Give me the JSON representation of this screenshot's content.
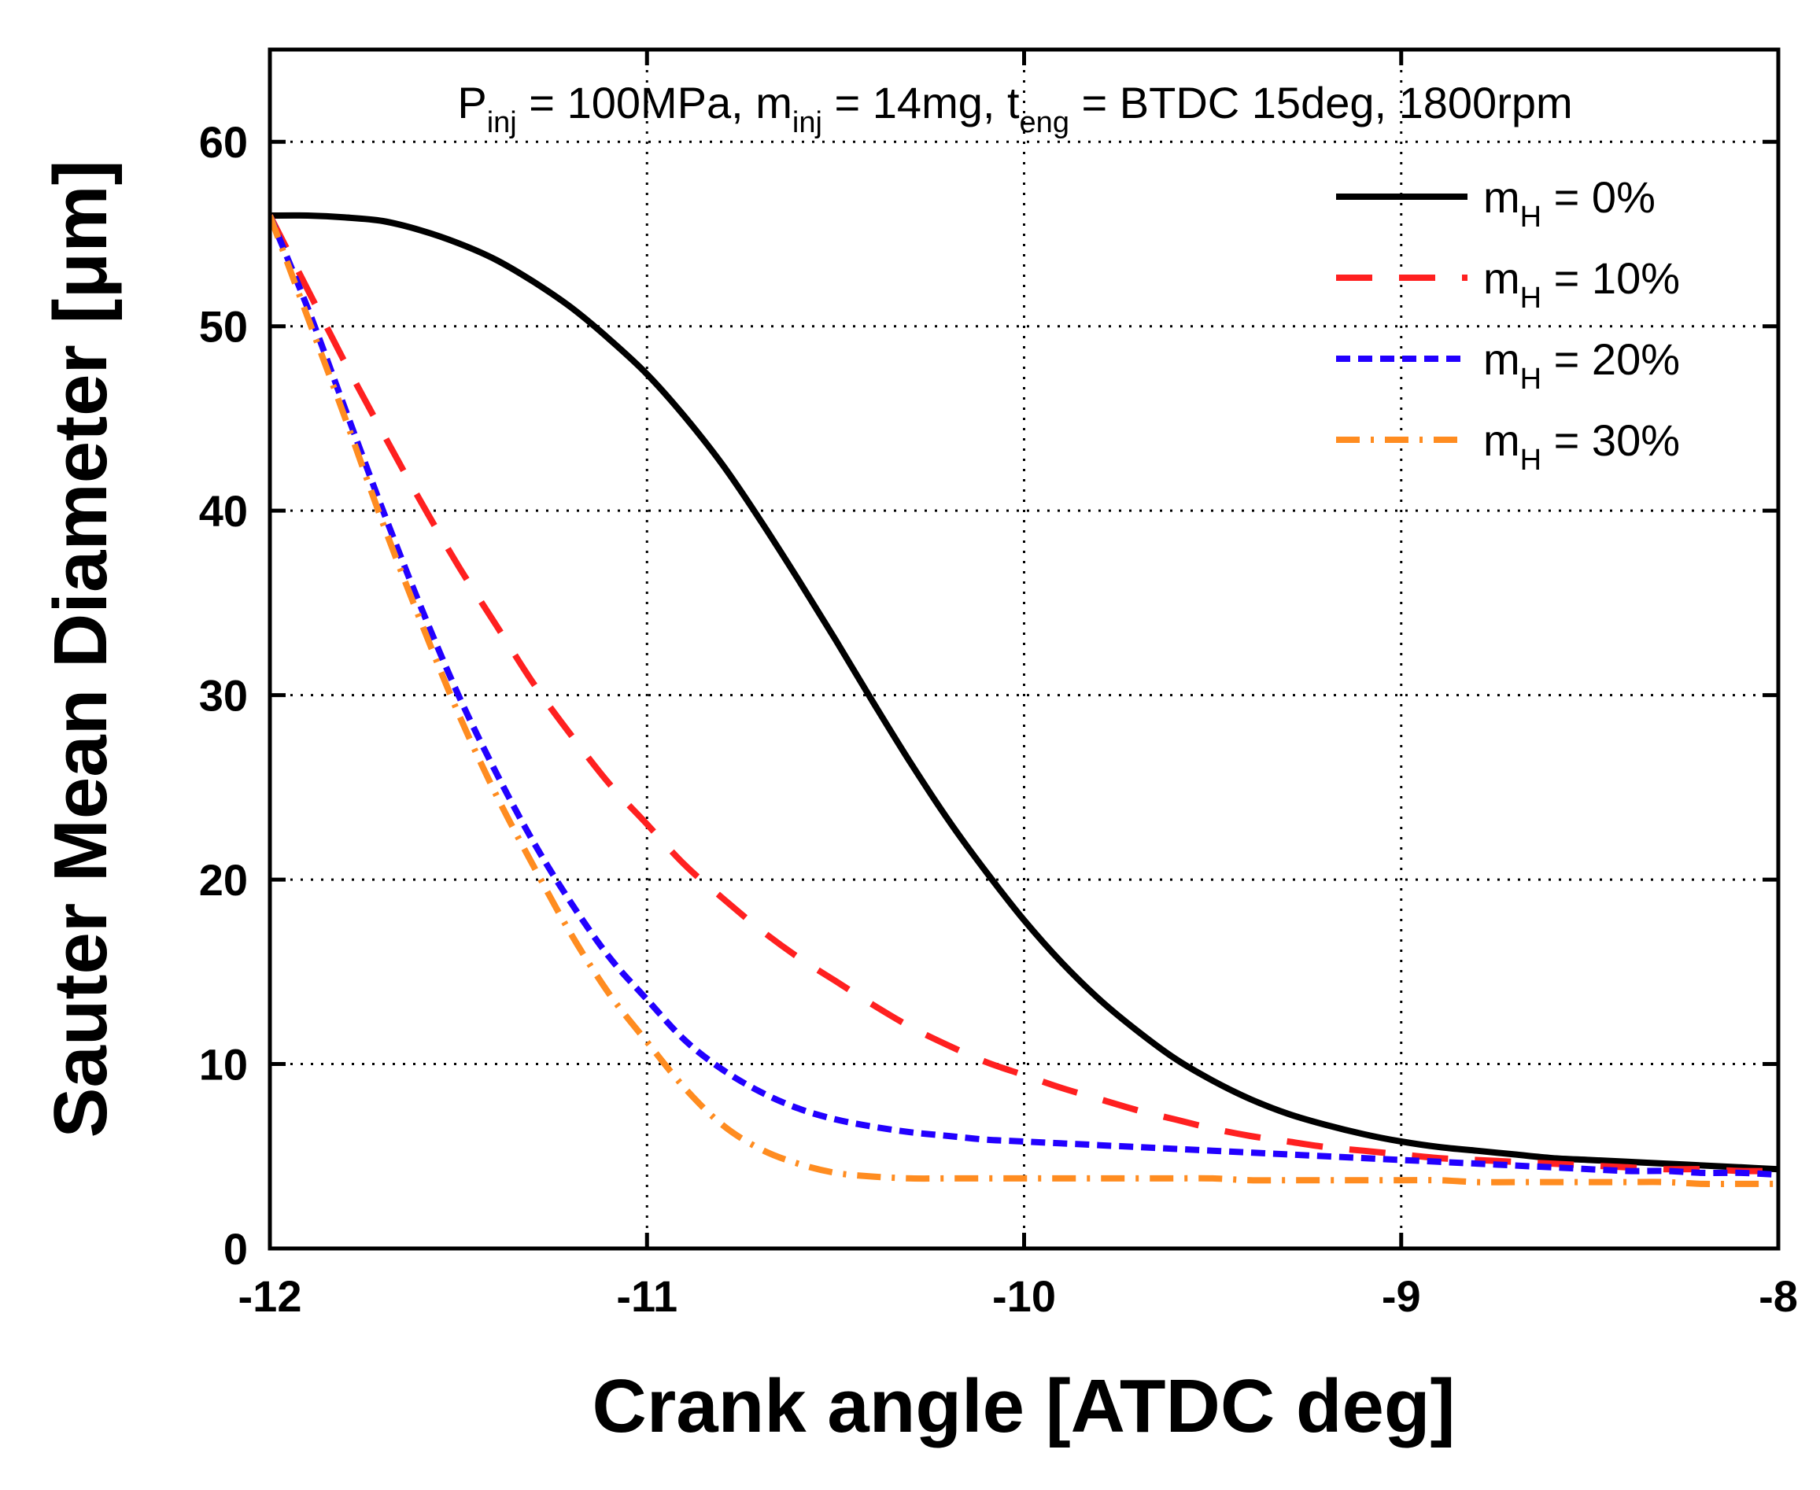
{
  "chart_data": {
    "type": "line",
    "title": "",
    "xlabel": "Crank angle [ATDC deg]",
    "ylabel": "Sauter Mean Diameter [μm]",
    "xlim": [
      -12,
      -8
    ],
    "ylim": [
      0,
      65
    ],
    "xticks": [
      -12,
      -11,
      -10,
      -9,
      -8
    ],
    "yticks": [
      0,
      10,
      20,
      30,
      40,
      50,
      60
    ],
    "xtick_labels": [
      "-12",
      "-11",
      "-10",
      "-9",
      "-8"
    ],
    "ytick_labels": [
      "0",
      "10",
      "20",
      "30",
      "40",
      "50",
      "60"
    ],
    "grid": true,
    "legend_position": "top-right",
    "annotation": {
      "p": "P",
      "p_sub": "inj",
      "p_rest": " = 100MPa, ",
      "m": "m",
      "m_sub": "inj",
      "m_rest": " = 14mg, ",
      "t": "t",
      "t_sub": "eng",
      "t_rest": " = BTDC 15deg, 1800rpm"
    },
    "series": [
      {
        "name": "m_H = 0%",
        "legend_main": "m",
        "legend_sub": "H",
        "legend_rest": " = 0%",
        "color": "#000000",
        "dash": "solid",
        "x": [
          -12.0,
          -11.9,
          -11.8,
          -11.7,
          -11.6,
          -11.5,
          -11.4,
          -11.3,
          -11.2,
          -11.1,
          -11.0,
          -10.9,
          -10.8,
          -10.7,
          -10.6,
          -10.5,
          -10.4,
          -10.3,
          -10.2,
          -10.1,
          -10.0,
          -9.9,
          -9.8,
          -9.7,
          -9.6,
          -9.5,
          -9.4,
          -9.3,
          -9.2,
          -9.1,
          -9.0,
          -8.9,
          -8.8,
          -8.7,
          -8.6,
          -8.5,
          -8.4,
          -8.3,
          -8.2,
          -8.1,
          -8.0
        ],
        "y": [
          56.0,
          56.0,
          55.9,
          55.7,
          55.2,
          54.5,
          53.6,
          52.4,
          51.0,
          49.3,
          47.4,
          45.1,
          42.5,
          39.5,
          36.3,
          33.0,
          29.6,
          26.3,
          23.2,
          20.4,
          17.8,
          15.5,
          13.5,
          11.8,
          10.3,
          9.1,
          8.1,
          7.3,
          6.7,
          6.2,
          5.8,
          5.5,
          5.3,
          5.1,
          4.9,
          4.8,
          4.7,
          4.6,
          4.5,
          4.4,
          4.3
        ]
      },
      {
        "name": "m_H = 10%",
        "legend_main": "m",
        "legend_sub": "H",
        "legend_rest": " = 10%",
        "color": "#ff2020",
        "dash": "long-dash",
        "x": [
          -12.0,
          -11.9,
          -11.8,
          -11.7,
          -11.6,
          -11.5,
          -11.4,
          -11.3,
          -11.2,
          -11.1,
          -11.0,
          -10.9,
          -10.8,
          -10.7,
          -10.6,
          -10.5,
          -10.4,
          -10.3,
          -10.2,
          -10.1,
          -10.0,
          -9.9,
          -9.8,
          -9.7,
          -9.6,
          -9.5,
          -9.4,
          -9.3,
          -9.2,
          -9.1,
          -9.0,
          -8.9,
          -8.8,
          -8.7,
          -8.6,
          -8.5,
          -8.4,
          -8.3,
          -8.2,
          -8.1,
          -8.0
        ],
        "y": [
          56.0,
          52.0,
          48.0,
          44.2,
          40.5,
          37.0,
          33.8,
          30.6,
          27.8,
          25.2,
          23.0,
          20.8,
          19.0,
          17.3,
          15.8,
          14.5,
          13.2,
          12.0,
          11.0,
          10.1,
          9.4,
          8.7,
          8.1,
          7.5,
          7.0,
          6.5,
          6.1,
          5.8,
          5.5,
          5.3,
          5.1,
          4.9,
          4.8,
          4.7,
          4.6,
          4.5,
          4.4,
          4.3,
          4.3,
          4.2,
          4.2
        ]
      },
      {
        "name": "m_H = 20%",
        "legend_main": "m",
        "legend_sub": "H",
        "legend_rest": " = 20%",
        "color": "#2200ff",
        "dash": "short-dash",
        "x": [
          -12.0,
          -11.9,
          -11.8,
          -11.7,
          -11.6,
          -11.5,
          -11.4,
          -11.3,
          -11.2,
          -11.1,
          -11.0,
          -10.9,
          -10.8,
          -10.7,
          -10.6,
          -10.5,
          -10.4,
          -10.3,
          -10.2,
          -10.1,
          -10.0,
          -9.9,
          -9.8,
          -9.7,
          -9.6,
          -9.5,
          -9.4,
          -9.3,
          -9.2,
          -9.1,
          -9.0,
          -8.9,
          -8.8,
          -8.7,
          -8.6,
          -8.5,
          -8.4,
          -8.3,
          -8.2,
          -8.1,
          -8.0
        ],
        "y": [
          56.0,
          51.0,
          45.5,
          40.0,
          34.8,
          30.0,
          25.8,
          22.0,
          18.7,
          15.8,
          13.5,
          11.3,
          9.7,
          8.5,
          7.6,
          7.0,
          6.6,
          6.3,
          6.1,
          5.9,
          5.8,
          5.7,
          5.6,
          5.5,
          5.4,
          5.3,
          5.2,
          5.1,
          5.0,
          4.9,
          4.8,
          4.7,
          4.6,
          4.5,
          4.4,
          4.3,
          4.2,
          4.2,
          4.1,
          4.1,
          4.0
        ]
      },
      {
        "name": "m_H = 30%",
        "legend_main": "m",
        "legend_sub": "H",
        "legend_rest": " = 30%",
        "color": "#ff8c20",
        "dash": "dash-dot",
        "x": [
          -12.0,
          -11.9,
          -11.8,
          -11.7,
          -11.6,
          -11.5,
          -11.4,
          -11.3,
          -11.2,
          -11.1,
          -11.0,
          -10.9,
          -10.8,
          -10.7,
          -10.6,
          -10.5,
          -10.4,
          -10.3,
          -10.2,
          -10.1,
          -10.0,
          -9.9,
          -9.8,
          -9.7,
          -9.6,
          -9.5,
          -9.4,
          -9.3,
          -9.2,
          -9.1,
          -9.0,
          -8.9,
          -8.8,
          -8.7,
          -8.6,
          -8.5,
          -8.4,
          -8.3,
          -8.2,
          -8.1,
          -8.0
        ],
        "y": [
          56.0,
          50.5,
          45.0,
          39.3,
          34.0,
          29.0,
          24.6,
          20.7,
          17.0,
          13.8,
          11.2,
          8.7,
          6.7,
          5.4,
          4.6,
          4.1,
          3.9,
          3.8,
          3.8,
          3.8,
          3.8,
          3.8,
          3.8,
          3.8,
          3.8,
          3.8,
          3.7,
          3.7,
          3.7,
          3.7,
          3.7,
          3.7,
          3.6,
          3.6,
          3.6,
          3.6,
          3.6,
          3.6,
          3.5,
          3.5,
          3.5
        ]
      }
    ]
  }
}
